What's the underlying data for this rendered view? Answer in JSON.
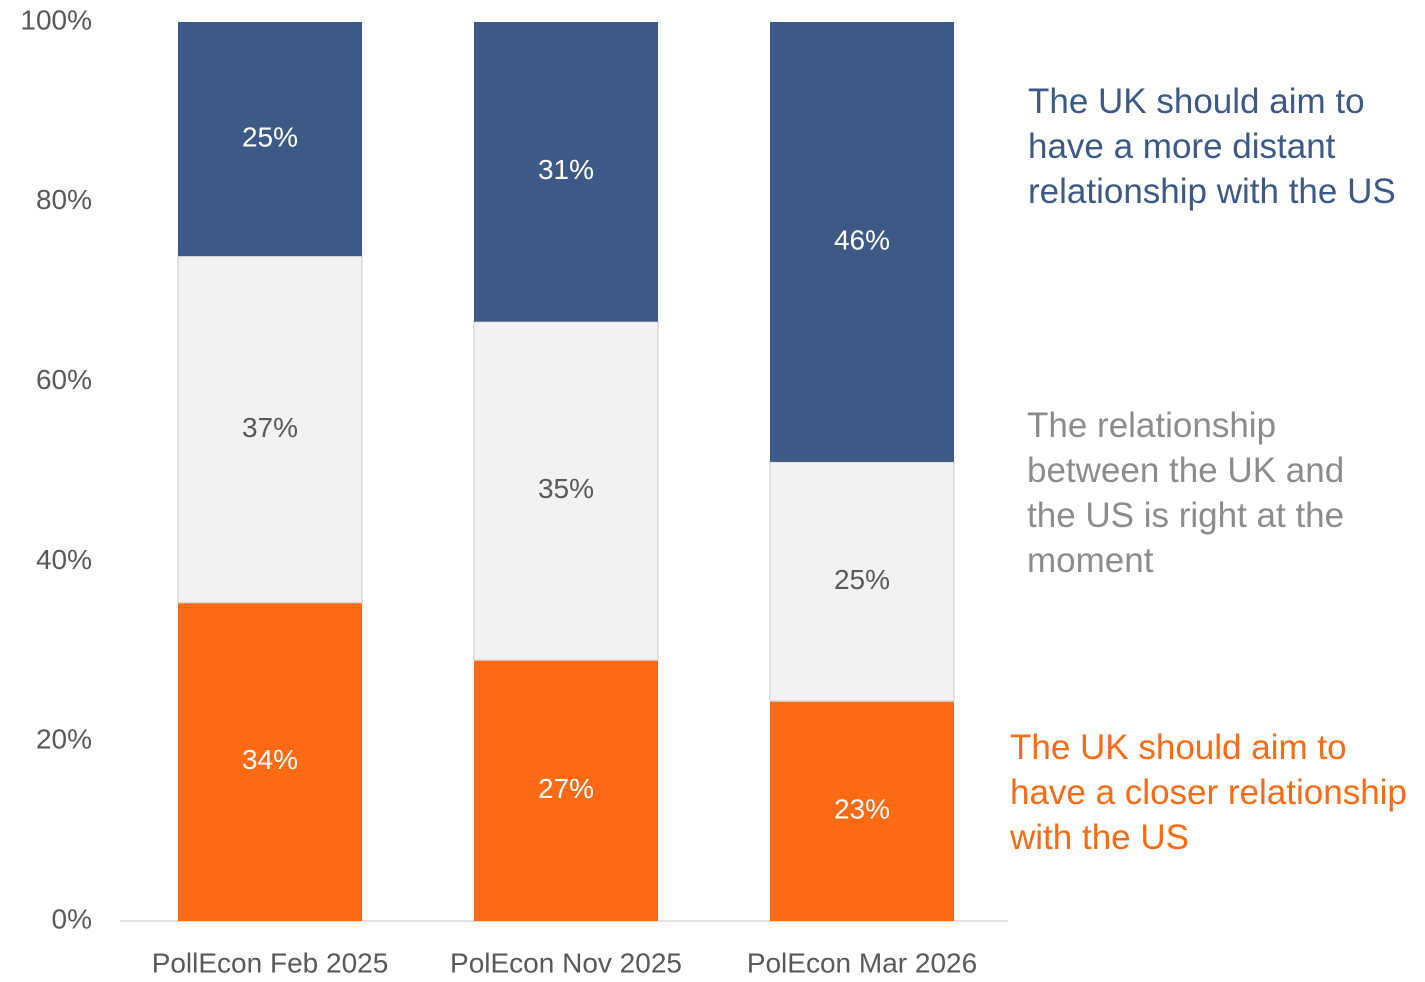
{
  "chart_data": {
    "type": "bar",
    "stacking": "percent",
    "categories": [
      "PollEcon Feb 2025",
      "PolEcon Nov 2025",
      "PolEcon Mar 2026"
    ],
    "series": [
      {
        "name": "The UK should aim to have a closer relationship with the US",
        "color": "#ff6a13",
        "values": [
          34,
          27,
          23
        ],
        "value_labels": [
          "34%",
          "27%",
          "23%"
        ]
      },
      {
        "name": "The relationship between the UK and the US is right at the moment",
        "color": "#f2f2f2",
        "values": [
          37,
          35,
          25
        ],
        "value_labels": [
          "37%",
          "35%",
          "25%"
        ]
      },
      {
        "name": "The UK should aim to have a more distant relationship with the US",
        "color": "#3d5a87",
        "values": [
          25,
          31,
          46
        ],
        "value_labels": [
          "25%",
          "31%",
          "46%"
        ]
      }
    ],
    "ylim": [
      0,
      100
    ],
    "yticks": [
      {
        "value": 0,
        "label": "0%"
      },
      {
        "value": 20,
        "label": "20%"
      },
      {
        "value": 40,
        "label": "40%"
      },
      {
        "value": 60,
        "label": "60%"
      },
      {
        "value": 80,
        "label": "80%"
      },
      {
        "value": 100,
        "label": "100%"
      }
    ]
  }
}
